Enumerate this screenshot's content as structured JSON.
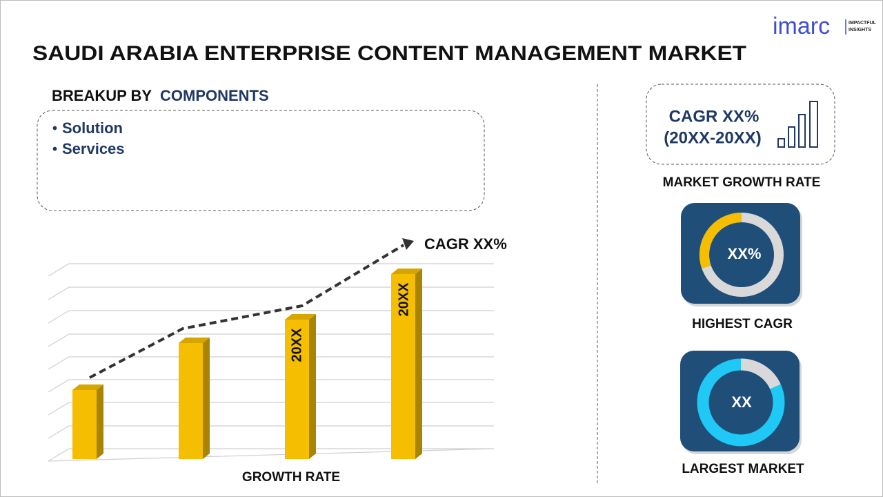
{
  "logo": {
    "name": "imarc",
    "tagline": [
      "IMPACTFUL",
      "INSIGHTS"
    ]
  },
  "header": {
    "title": "SAUDI ARABIA ENTERPRISE CONTENT MANAGEMENT MARKET"
  },
  "breakup": {
    "label": "BREAKUP BY",
    "segment": "COMPONENTS",
    "items": [
      "Solution",
      "Services"
    ]
  },
  "growth_chart": {
    "trend_label": "CAGR XX%",
    "bar_labels": [
      "20XX",
      "20XX"
    ],
    "axis_label": "GROWTH RATE"
  },
  "kpis": [
    {
      "value": "CAGR XX%",
      "period": "(20XX-20XX)",
      "label": "MARKET GROWTH RATE"
    },
    {
      "value": "XX%",
      "label": "HIGHEST CAGR"
    },
    {
      "value": "XX",
      "label": "LARGEST MARKET"
    }
  ]
}
